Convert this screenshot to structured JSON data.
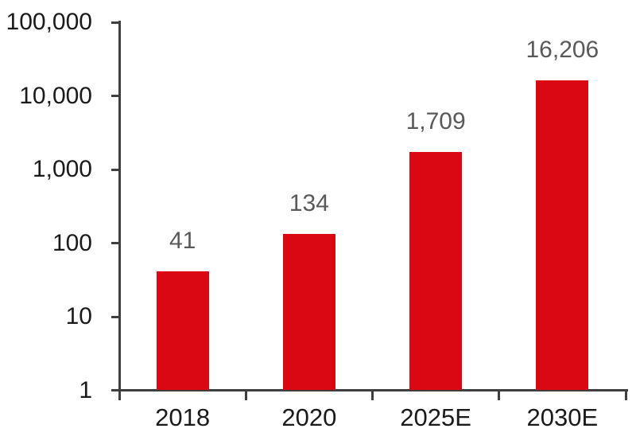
{
  "chart_data": {
    "type": "bar",
    "scale": "log10",
    "categories": [
      "2018",
      "2020",
      "2025E",
      "2030E"
    ],
    "values": [
      41,
      134,
      1709,
      16206
    ],
    "value_labels": [
      "41",
      "134",
      "1,709",
      "16,206"
    ],
    "y_ticks": [
      {
        "value": 1,
        "label": "1"
      },
      {
        "value": 10,
        "label": "10"
      },
      {
        "value": 100,
        "label": "100"
      },
      {
        "value": 1000,
        "label": "1,000"
      },
      {
        "value": 10000,
        "label": "10,000"
      },
      {
        "value": 100000,
        "label": "100,000"
      }
    ],
    "ylim": [
      1,
      100000
    ],
    "grid": false,
    "legend": false,
    "colors": {
      "bar": "#D90813",
      "axis": "#3F3F3F",
      "tick_label": "#1A1A1A",
      "data_label": "#595959",
      "background": "#FFFFFF"
    }
  }
}
